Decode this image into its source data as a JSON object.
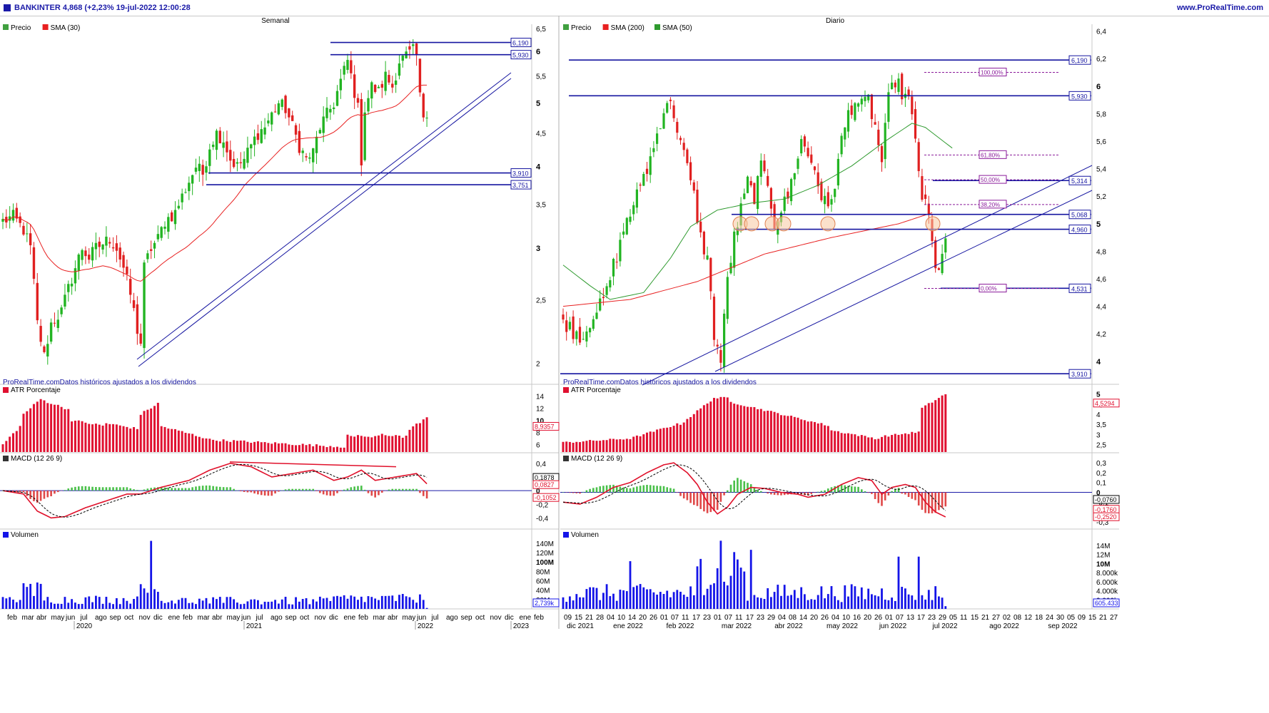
{
  "header": {
    "ticker_line": "BANKINTER 4,868 (+2,23% 19-jul-2022 12:00:28",
    "website": "www.ProRealTime.com"
  },
  "colors": {
    "up": "#22b422",
    "down": "#e02020",
    "sma_red": "#e82020",
    "sma_green": "#2e9a2e",
    "line_blue": "#1515a0",
    "atr": "#e01030",
    "macd": "#e0102a",
    "volume": "#1414e8",
    "fib": "#8a1a9a"
  },
  "left": {
    "title": "Semanal",
    "legend": [
      "Precio",
      "SMA (30)"
    ],
    "footer": "ProRealTime.comDatos históricos ajustados a los dividendos",
    "y_ticks": [
      "6,5",
      "6",
      "5,5",
      "5",
      "4,5",
      "4",
      "3,5",
      "3",
      "2,5",
      "2"
    ],
    "y_ticks_bold": [
      "6",
      "5",
      "4",
      "3"
    ],
    "price_levels": [
      "6,190",
      "5,930",
      "3,910",
      "3,751"
    ],
    "atr": {
      "label": "ATR Porcentaje",
      "ticks": [
        "14",
        "12",
        "10",
        "8",
        "6"
      ],
      "current": "8,9357"
    },
    "macd": {
      "label": "MACD (12 26 9)",
      "ticks": [
        "0,4",
        "0,2",
        "0",
        "-0,2",
        "-0,4"
      ],
      "values": [
        "0,1878",
        "0,0827",
        "-0,1052"
      ]
    },
    "volume": {
      "label": "Volumen",
      "ticks": [
        "140M",
        "120M",
        "100M",
        "80M",
        "60M",
        "40M",
        "20M"
      ],
      "current": "2,739k"
    },
    "x_months": [
      "feb",
      "mar",
      "abr",
      "may",
      "jun",
      "jul",
      "ago",
      "sep",
      "oct",
      "nov",
      "dic",
      "ene",
      "feb",
      "mar",
      "abr",
      "may",
      "jun",
      "jul",
      "ago",
      "sep",
      "oct",
      "nov",
      "dic",
      "ene",
      "feb",
      "mar",
      "abr",
      "may",
      "jun",
      "jul",
      "ago",
      "sep",
      "oct",
      "nov",
      "dic",
      "ene",
      "feb"
    ],
    "x_years": [
      "2020",
      "2021",
      "2022",
      "2023"
    ]
  },
  "right": {
    "title": "Diario",
    "legend": [
      "Precio",
      "SMA (200)",
      "SMA (50)"
    ],
    "footer": "ProRealTime.comDatos históricos ajustados a los dividendos",
    "y_ticks": [
      "6,4",
      "6,2",
      "6",
      "5,8",
      "5,6",
      "5,4",
      "5,2",
      "5",
      "4,8",
      "4,6",
      "4,4",
      "4,2",
      "4"
    ],
    "y_ticks_bold": [
      "6",
      "5",
      "4"
    ],
    "price_levels": [
      "6,190",
      "5,930",
      "5,314",
      "5,068",
      "4,960",
      "4,531",
      "3,910"
    ],
    "fib_levels": [
      "100,00%",
      "61,80%",
      "50,00%",
      "38,20%",
      "0,00%"
    ],
    "atr": {
      "label": "ATR Porcentaje",
      "ticks": [
        "5",
        "4,5",
        "4",
        "3,5",
        "3",
        "2,5"
      ],
      "current": "4,5294"
    },
    "macd": {
      "label": "MACD (12 26 9)",
      "ticks": [
        "0,3",
        "0,2",
        "0,1",
        "0",
        "-0,1",
        "-0,2",
        "-0,3"
      ],
      "values": [
        "-0,0760",
        "-0,1760",
        "-0,2520"
      ]
    },
    "volume": {
      "label": "Volumen",
      "ticks": [
        "14M",
        "12M",
        "10M",
        "8.000k",
        "6.000k",
        "4.000k",
        "2.000k"
      ],
      "current": "605.433"
    },
    "x_days": [
      "09",
      "15",
      "21",
      "28",
      "04",
      "10",
      "14",
      "20",
      "26",
      "01",
      "07",
      "11",
      "17",
      "23",
      "01",
      "07",
      "11",
      "17",
      "23",
      "29",
      "04",
      "08",
      "14",
      "20",
      "26",
      "04",
      "10",
      "16",
      "20",
      "26",
      "01",
      "07",
      "13",
      "17",
      "23",
      "29",
      "05",
      "11",
      "15",
      "21",
      "27",
      "02",
      "08",
      "12",
      "18",
      "24",
      "30",
      "05",
      "09",
      "15",
      "21",
      "27"
    ],
    "x_months": [
      "dic 2021",
      "ene 2022",
      "feb 2022",
      "mar 2022",
      "abr 2022",
      "may 2022",
      "jun 2022",
      "jul 2022",
      "ago 2022",
      "sep 2022"
    ]
  },
  "chart_data": [
    {
      "type": "candlestick",
      "title": "Semanal",
      "series": [
        {
          "name": "Precio"
        },
        {
          "name": "SMA (30)"
        }
      ],
      "ylim": [
        1.9,
        6.6
      ],
      "y_scale": "log",
      "horizontal_levels": [
        6.19,
        5.93,
        3.91,
        3.751
      ],
      "close_path": [
        [
          0,
          3.3
        ],
        [
          3,
          3.35
        ],
        [
          6,
          3.2
        ],
        [
          8,
          3.0
        ],
        [
          10,
          2.3
        ],
        [
          12,
          2.05
        ],
        [
          14,
          2.3
        ],
        [
          17,
          2.4
        ],
        [
          19,
          2.6
        ],
        [
          21,
          2.8
        ],
        [
          23,
          3.0
        ],
        [
          25,
          2.9
        ],
        [
          27,
          3.0
        ],
        [
          29,
          3.05
        ],
        [
          31,
          3.1
        ],
        [
          33,
          3.0
        ],
        [
          35,
          2.8
        ],
        [
          37,
          2.55
        ],
        [
          39,
          2.25
        ],
        [
          40,
          2.15
        ],
        [
          41,
          2.8
        ],
        [
          43,
          3.0
        ],
        [
          45,
          3.1
        ],
        [
          47,
          3.3
        ],
        [
          50,
          3.4
        ],
        [
          52,
          3.6
        ],
        [
          54,
          3.8
        ],
        [
          56,
          4.0
        ],
        [
          58,
          3.9
        ],
        [
          60,
          4.3
        ],
        [
          62,
          4.5
        ],
        [
          64,
          4.4
        ],
        [
          66,
          4.1
        ],
        [
          68,
          4.0
        ],
        [
          70,
          4.1
        ],
        [
          72,
          4.3
        ],
        [
          74,
          4.5
        ],
        [
          76,
          4.6
        ],
        [
          78,
          4.8
        ],
        [
          80,
          5.0
        ],
        [
          82,
          4.9
        ],
        [
          84,
          4.6
        ],
        [
          86,
          4.3
        ],
        [
          88,
          4.1
        ],
        [
          90,
          4.2
        ],
        [
          92,
          4.6
        ],
        [
          94,
          4.8
        ],
        [
          96,
          5.0
        ],
        [
          98,
          5.4
        ],
        [
          100,
          5.8
        ],
        [
          101,
          5.5
        ],
        [
          103,
          4.9
        ],
        [
          104,
          4.1
        ],
        [
          105,
          4.9
        ],
        [
          107,
          5.3
        ],
        [
          109,
          5.2
        ],
        [
          111,
          5.5
        ],
        [
          113,
          5.3
        ],
        [
          115,
          5.8
        ],
        [
          117,
          5.9
        ],
        [
          119,
          6.0
        ],
        [
          120,
          5.9
        ],
        [
          121,
          5.1
        ],
        [
          122,
          4.8
        ],
        [
          123,
          4.87
        ]
      ]
    },
    {
      "type": "candlestick",
      "title": "Diario",
      "series": [
        {
          "name": "Precio"
        },
        {
          "name": "SMA (200)"
        },
        {
          "name": "SMA (50)"
        }
      ],
      "ylim": [
        3.88,
        6.45
      ],
      "horizontal_levels": [
        6.19,
        5.93,
        5.314,
        5.068,
        4.96,
        4.531,
        3.91
      ],
      "fibonacci": [
        {
          "level": "100,00%",
          "price": 6.1
        },
        {
          "level": "61,80%",
          "price": 5.5
        },
        {
          "level": "50,00%",
          "price": 5.32
        },
        {
          "level": "38,20%",
          "price": 5.14
        },
        {
          "level": "0,00%",
          "price": 4.53
        }
      ],
      "close_path": [
        [
          0,
          4.3
        ],
        [
          3,
          4.22
        ],
        [
          6,
          4.18
        ],
        [
          9,
          4.35
        ],
        [
          11,
          4.4
        ],
        [
          13,
          4.5
        ],
        [
          15,
          4.7
        ],
        [
          17,
          4.85
        ],
        [
          19,
          5.05
        ],
        [
          21,
          5.1
        ],
        [
          23,
          5.3
        ],
        [
          25,
          5.4
        ],
        [
          27,
          5.55
        ],
        [
          29,
          5.75
        ],
        [
          31,
          5.9
        ],
        [
          33,
          5.8
        ],
        [
          35,
          5.6
        ],
        [
          37,
          5.4
        ],
        [
          39,
          5.2
        ],
        [
          41,
          4.9
        ],
        [
          43,
          4.75
        ],
        [
          45,
          4.2
        ],
        [
          47,
          4.0
        ],
        [
          49,
          4.6
        ],
        [
          51,
          4.9
        ],
        [
          53,
          5.1
        ],
        [
          55,
          5.3
        ],
        [
          57,
          5.2
        ],
        [
          59,
          5.4
        ],
        [
          61,
          5.3
        ],
        [
          63,
          5.0
        ],
        [
          65,
          5.1
        ],
        [
          67,
          5.2
        ],
        [
          69,
          5.4
        ],
        [
          71,
          5.6
        ],
        [
          73,
          5.5
        ],
        [
          75,
          5.4
        ],
        [
          77,
          5.2
        ],
        [
          79,
          5.1
        ],
        [
          81,
          5.3
        ],
        [
          83,
          5.6
        ],
        [
          85,
          5.8
        ],
        [
          87,
          5.9
        ],
        [
          89,
          5.85
        ],
        [
          91,
          5.9
        ],
        [
          93,
          5.7
        ],
        [
          95,
          5.45
        ],
        [
          97,
          5.9
        ],
        [
          99,
          6.05
        ],
        [
          101,
          5.95
        ],
        [
          103,
          5.9
        ],
        [
          105,
          5.6
        ],
        [
          107,
          5.2
        ],
        [
          109,
          5.05
        ],
        [
          110,
          4.85
        ],
        [
          111,
          4.65
        ],
        [
          112,
          4.7
        ],
        [
          113,
          4.8
        ],
        [
          114,
          4.87
        ]
      ]
    }
  ]
}
